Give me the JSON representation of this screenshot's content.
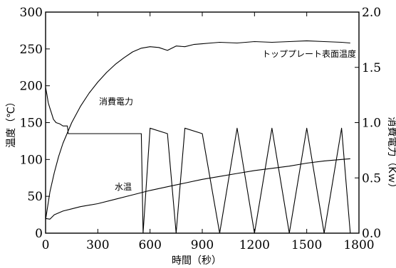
{
  "chart_data": {
    "type": "line",
    "title": "",
    "xlabel": "時間（秒）",
    "ylabel_left": "温度（℃）",
    "ylabel_right": "消費電力（Kｗ）",
    "xlim": [
      0,
      1800
    ],
    "ylim_left": [
      0,
      300
    ],
    "ylim_right": [
      0,
      2.0
    ],
    "x_ticks": [
      0,
      300,
      600,
      900,
      1200,
      1500,
      1800
    ],
    "x_tick_labels": [
      "0",
      "300",
      "600",
      "900",
      "1200",
      "1500",
      "1800"
    ],
    "y_left_ticks": [
      0,
      50,
      100,
      150,
      200,
      250,
      300
    ],
    "y_left_tick_labels": [
      "0",
      "50",
      "100",
      "150",
      "200",
      "250",
      "300"
    ],
    "y_right_ticks": [
      0,
      0.5,
      1.0,
      1.5,
      2.0
    ],
    "y_right_tick_labels": [
      "0.0",
      "0.5",
      "1.0",
      "1.5",
      "2.0"
    ],
    "grid": false,
    "legend": "none",
    "series": [
      {
        "name": "トッププレート表面温度",
        "axis": "left",
        "x": [
          0,
          25,
          50,
          75,
          100,
          150,
          200,
          250,
          300,
          350,
          400,
          450,
          500,
          550,
          600,
          650,
          700,
          750,
          800,
          850,
          900,
          950,
          1000,
          1100,
          1200,
          1300,
          1400,
          1500,
          1600,
          1700,
          1750
        ],
        "values": [
          18,
          56,
          82,
          104,
          122,
          150,
          172,
          190,
          205,
          218,
          229,
          238,
          246,
          251,
          253,
          252,
          248,
          254,
          253,
          256,
          257,
          258,
          259,
          258,
          260,
          259,
          260,
          261,
          260,
          259,
          258
        ]
      },
      {
        "name": "消費電力",
        "axis": "right",
        "x": [
          0,
          8,
          15,
          25,
          35,
          45,
          60,
          80,
          100,
          125,
          130,
          200,
          300,
          400,
          500,
          540,
          550,
          560,
          600,
          700,
          750,
          800,
          900,
          1000,
          1100,
          1200,
          1300,
          1400,
          1500,
          1600,
          1700,
          1750
        ],
        "values": [
          1.32,
          1.25,
          1.18,
          1.13,
          1.08,
          1.03,
          1.0,
          0.99,
          0.97,
          0.97,
          0.9,
          0.9,
          0.9,
          0.9,
          0.9,
          0.9,
          0.9,
          0.0,
          0.95,
          0.9,
          0.0,
          0.95,
          0.9,
          0.0,
          0.95,
          0.0,
          0.95,
          0.0,
          0.95,
          0.0,
          0.95,
          0.0
        ]
      },
      {
        "name": "水温",
        "axis": "left",
        "x": [
          0,
          25,
          50,
          100,
          150,
          200,
          300,
          400,
          500,
          600,
          700,
          800,
          900,
          1000,
          1100,
          1200,
          1300,
          1400,
          1500,
          1600,
          1700,
          1750
        ],
        "values": [
          20,
          19,
          25,
          30,
          33,
          36,
          40,
          46,
          52,
          58,
          63,
          68,
          73,
          77,
          81,
          85,
          88,
          91,
          95,
          98,
          100,
          101
        ]
      }
    ],
    "annotations": [
      "トッププレート表面温度",
      "消費電力",
      "水温"
    ]
  }
}
